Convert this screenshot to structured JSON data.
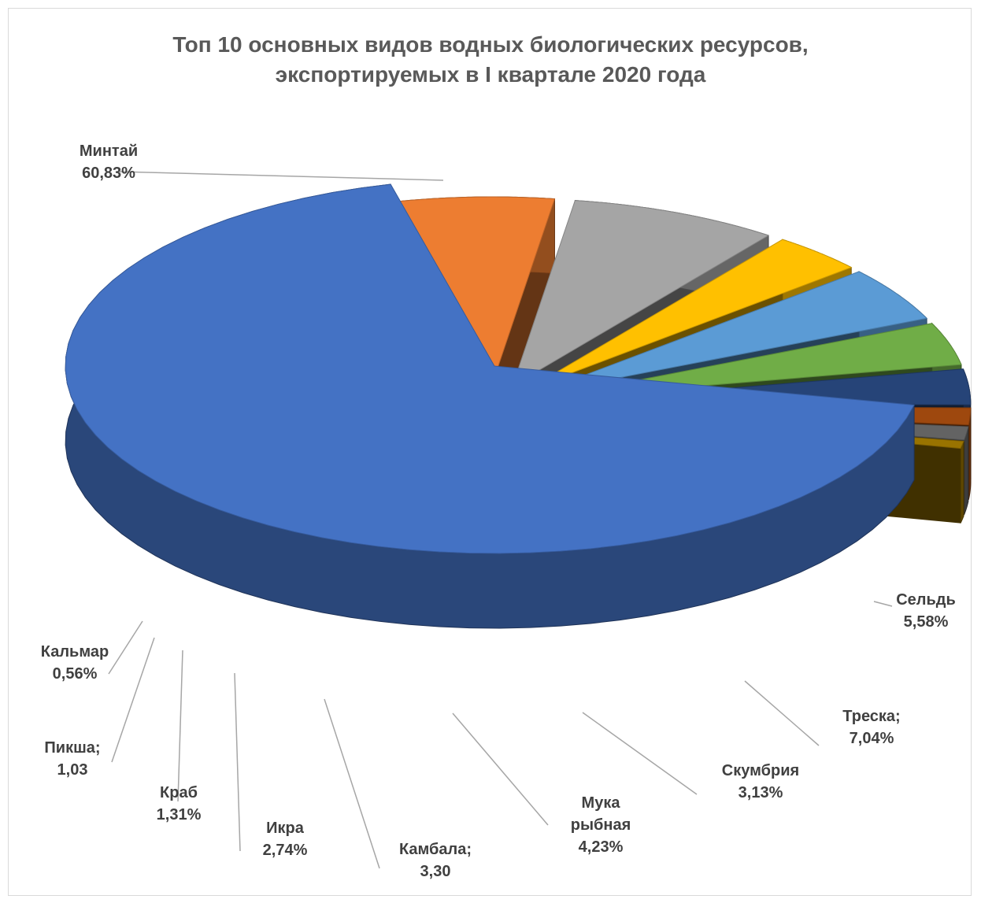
{
  "chart_data": {
    "type": "pie",
    "title": [
      "Топ 10 основных видов водных биологических ресурсов,",
      "экспортируемых в I квартале 2020 года"
    ],
    "slices": [
      {
        "name": "Минтай",
        "value": 60.83,
        "label": [
          "Минтай",
          "60,83%"
        ],
        "color": "#4472c4"
      },
      {
        "name": "Сельдь",
        "value": 5.58,
        "label": [
          "Сельдь",
          "5,58%"
        ],
        "color": "#ed7d31"
      },
      {
        "name": "Треска",
        "value": 7.04,
        "label": [
          "Треска;",
          "7,04%"
        ],
        "color": "#a5a5a5"
      },
      {
        "name": "Скумбрия",
        "value": 3.13,
        "label": [
          "Скумбрия",
          "3,13%"
        ],
        "color": "#ffc000"
      },
      {
        "name": "Мука рыбная",
        "value": 4.23,
        "label": [
          "Мука",
          "рыбная",
          "4,23%"
        ],
        "color": "#5b9bd5"
      },
      {
        "name": "Камбала",
        "value": 3.3,
        "label": [
          "Камбала;",
          "3,30"
        ],
        "color": "#70ad47"
      },
      {
        "name": "Икра",
        "value": 2.74,
        "label": [
          "Икра",
          "2,74%"
        ],
        "color": "#264478"
      },
      {
        "name": "Краб",
        "value": 1.31,
        "label": [
          "Краб",
          "1,31%"
        ],
        "color": "#9e480e"
      },
      {
        "name": "Пикша",
        "value": 1.03,
        "label": [
          "Пикша;",
          "1,03"
        ],
        "color": "#636363"
      },
      {
        "name": "Кальмар",
        "value": 0.56,
        "label": [
          "Кальмар",
          "0,56%"
        ],
        "color": "#997300"
      }
    ]
  }
}
